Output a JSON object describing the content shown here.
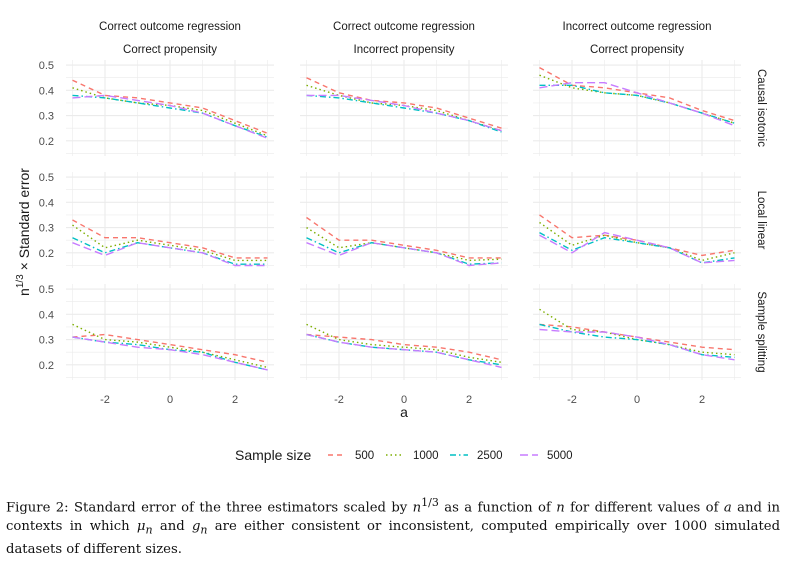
{
  "chart_data": {
    "type": "line",
    "facet_columns": [
      {
        "line1": "Correct outcome regression",
        "line2": "Correct propensity"
      },
      {
        "line1": "Correct outcome regression",
        "line2": "Incorrect propensity"
      },
      {
        "line1": "Incorrect outcome regression",
        "line2": "Correct propensity"
      }
    ],
    "facet_rows": [
      "Causal isotonic",
      "Local linear",
      "Sample splitting"
    ],
    "xlabel": "a",
    "ylabel_base": "n",
    "ylabel_exp": "1/3",
    "ylabel_rest": " × Standard error",
    "xlim": [
      -3.2,
      3.2
    ],
    "ylim": [
      0.14,
      0.52
    ],
    "x_ticks": [
      -2,
      0,
      2
    ],
    "y_ticks": [
      0.2,
      0.3,
      0.4,
      0.5
    ],
    "x": [
      -3,
      -2,
      -1,
      0,
      1,
      2,
      3
    ],
    "legend": {
      "title": "Sample size",
      "position": "bottom",
      "items": [
        {
          "label": "500",
          "color": "#F8766D",
          "dash": "5,4"
        },
        {
          "label": "1000",
          "color": "#7CAE00",
          "dash": "1.5,3"
        },
        {
          "label": "2500",
          "color": "#00BFC4",
          "dash": "6,3,1.5,3"
        },
        {
          "label": "5000",
          "color": "#C77CFF",
          "dash": "8,4"
        }
      ]
    },
    "panels": [
      [
        [
          [
            0.44,
            0.38,
            0.37,
            0.35,
            0.33,
            0.28,
            0.23
          ],
          [
            0.41,
            0.37,
            0.35,
            0.34,
            0.32,
            0.27,
            0.22
          ],
          [
            0.38,
            0.37,
            0.35,
            0.33,
            0.31,
            0.26,
            0.215
          ],
          [
            0.37,
            0.38,
            0.36,
            0.34,
            0.31,
            0.26,
            0.21
          ]
        ],
        [
          [
            0.45,
            0.39,
            0.36,
            0.35,
            0.33,
            0.29,
            0.25
          ],
          [
            0.42,
            0.38,
            0.35,
            0.34,
            0.32,
            0.28,
            0.24
          ],
          [
            0.38,
            0.37,
            0.35,
            0.33,
            0.31,
            0.28,
            0.235
          ],
          [
            0.38,
            0.38,
            0.36,
            0.34,
            0.31,
            0.28,
            0.24
          ]
        ],
        [
          [
            0.49,
            0.42,
            0.41,
            0.39,
            0.37,
            0.32,
            0.28
          ],
          [
            0.46,
            0.41,
            0.39,
            0.38,
            0.35,
            0.31,
            0.27
          ],
          [
            0.42,
            0.42,
            0.39,
            0.38,
            0.35,
            0.31,
            0.27
          ],
          [
            0.41,
            0.43,
            0.43,
            0.39,
            0.35,
            0.31,
            0.26
          ]
        ]
      ],
      [
        [
          [
            0.33,
            0.26,
            0.26,
            0.24,
            0.22,
            0.18,
            0.18
          ],
          [
            0.31,
            0.22,
            0.25,
            0.23,
            0.21,
            0.17,
            0.17
          ],
          [
            0.26,
            0.2,
            0.24,
            0.22,
            0.2,
            0.155,
            0.155
          ],
          [
            0.24,
            0.19,
            0.24,
            0.22,
            0.2,
            0.15,
            0.15
          ]
        ],
        [
          [
            0.34,
            0.25,
            0.25,
            0.23,
            0.21,
            0.18,
            0.18
          ],
          [
            0.3,
            0.22,
            0.24,
            0.22,
            0.2,
            0.17,
            0.175
          ],
          [
            0.26,
            0.2,
            0.24,
            0.22,
            0.2,
            0.155,
            0.16
          ],
          [
            0.24,
            0.19,
            0.24,
            0.22,
            0.2,
            0.15,
            0.16
          ]
        ],
        [
          [
            0.35,
            0.26,
            0.27,
            0.25,
            0.22,
            0.19,
            0.21
          ],
          [
            0.32,
            0.23,
            0.27,
            0.24,
            0.22,
            0.17,
            0.2
          ],
          [
            0.28,
            0.21,
            0.26,
            0.24,
            0.22,
            0.16,
            0.18
          ],
          [
            0.27,
            0.2,
            0.28,
            0.25,
            0.22,
            0.16,
            0.17
          ]
        ]
      ],
      [
        [
          [
            0.31,
            0.32,
            0.3,
            0.28,
            0.26,
            0.24,
            0.21
          ],
          [
            0.36,
            0.3,
            0.29,
            0.27,
            0.25,
            0.22,
            0.19
          ],
          [
            0.31,
            0.29,
            0.28,
            0.26,
            0.25,
            0.21,
            0.18
          ],
          [
            0.31,
            0.29,
            0.27,
            0.26,
            0.24,
            0.21,
            0.18
          ]
        ],
        [
          [
            0.32,
            0.31,
            0.3,
            0.28,
            0.27,
            0.25,
            0.22
          ],
          [
            0.36,
            0.3,
            0.28,
            0.27,
            0.26,
            0.23,
            0.21
          ],
          [
            0.32,
            0.29,
            0.27,
            0.26,
            0.25,
            0.22,
            0.2
          ],
          [
            0.32,
            0.29,
            0.27,
            0.26,
            0.25,
            0.22,
            0.19
          ]
        ],
        [
          [
            0.36,
            0.35,
            0.33,
            0.31,
            0.29,
            0.27,
            0.26
          ],
          [
            0.42,
            0.34,
            0.33,
            0.3,
            0.28,
            0.25,
            0.24
          ],
          [
            0.36,
            0.33,
            0.31,
            0.3,
            0.28,
            0.24,
            0.23
          ],
          [
            0.34,
            0.33,
            0.33,
            0.31,
            0.28,
            0.24,
            0.22
          ]
        ]
      ]
    ]
  },
  "caption": {
    "label": "Figure 2:",
    "text_1": "Standard error of the three estimators scaled by ",
    "math_1": "n",
    "sup_1": "1/3",
    "text_2": " as a function of ",
    "math_2": "n",
    "text_3": " for different values of ",
    "math_3": "a",
    "text_4": " and in contexts in which ",
    "math_4": "μ",
    "sub_4": "n",
    "text_5": " and ",
    "math_5": "g",
    "sub_5": "n",
    "text_6": " are either consistent or inconsistent, computed empirically over 1000 simulated datasets of different sizes."
  }
}
